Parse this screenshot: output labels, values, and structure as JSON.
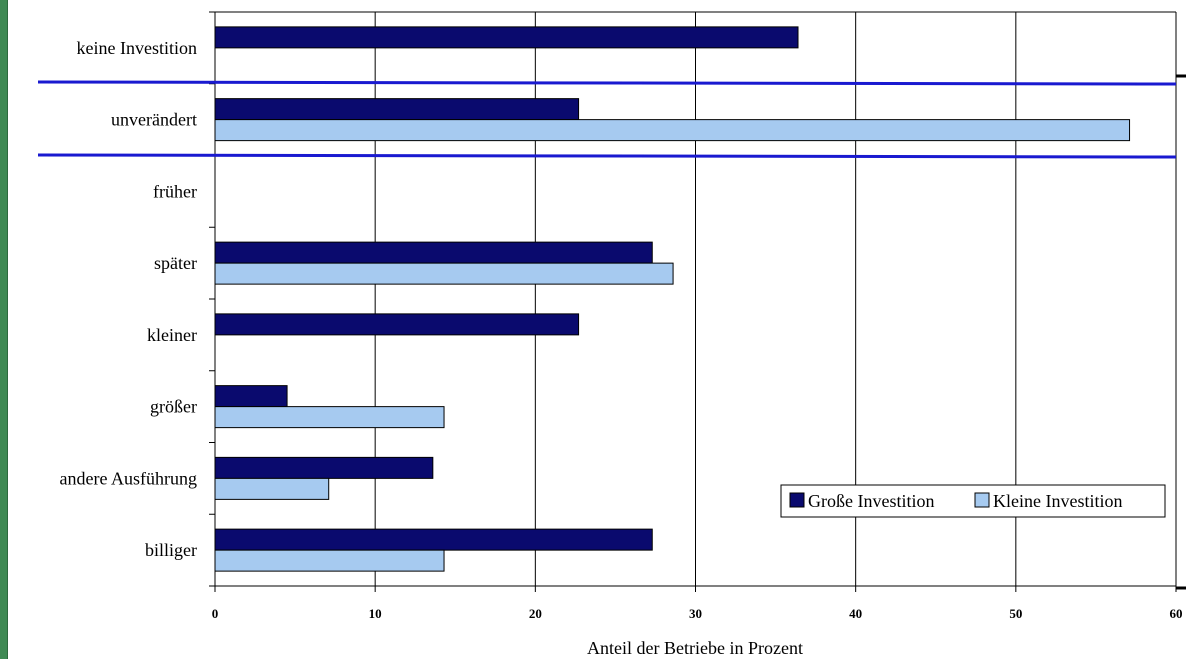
{
  "chart_data": {
    "type": "bar",
    "orientation": "horizontal",
    "categories": [
      "keine Investition",
      "unverändert",
      "früher",
      "später",
      "kleiner",
      "größer",
      "andere Ausführung",
      "billiger"
    ],
    "series": [
      {
        "name": "Große Investition",
        "color": "#0a0a6e",
        "values": [
          36.4,
          22.7,
          0,
          27.3,
          22.7,
          4.5,
          13.6,
          27.3
        ]
      },
      {
        "name": "Kleine Investition",
        "color": "#a6caf0",
        "values": [
          0,
          57.1,
          0,
          28.6,
          0,
          14.3,
          7.1,
          14.3
        ]
      }
    ],
    "xlabel": "Anteil der Betriebe in Prozent",
    "xlim": [
      0,
      60
    ],
    "xticks": [
      "0",
      "10",
      "20",
      "30",
      "40",
      "50",
      "60"
    ],
    "grid": true,
    "legend_position": "bottom-right",
    "highlight_line_color": "#1a1ad0"
  }
}
